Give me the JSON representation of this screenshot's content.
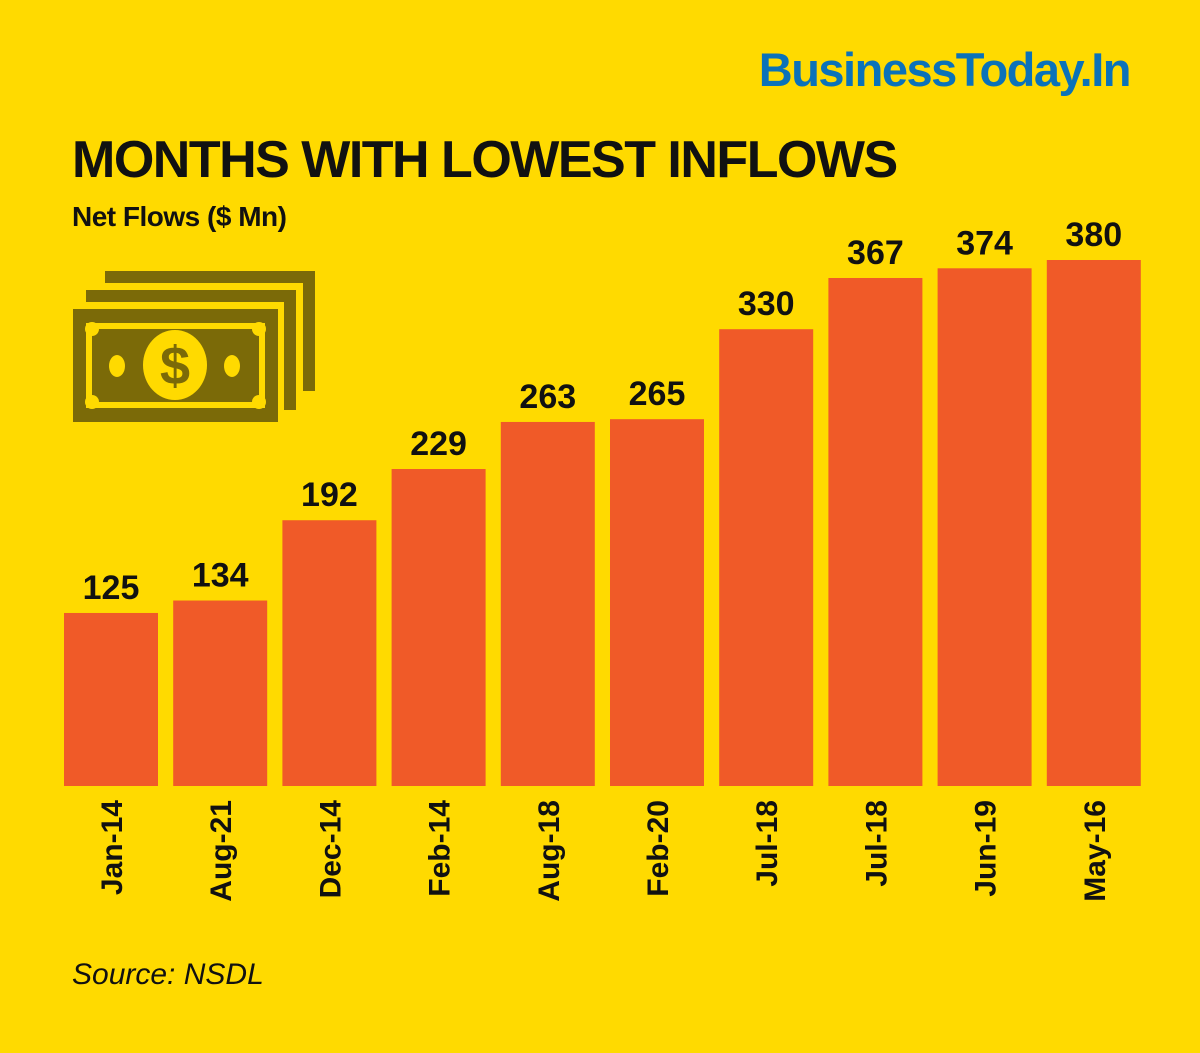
{
  "logo": "BusinessToday.In",
  "source": "Source: NSDL",
  "colors": {
    "background": "#FFDA00",
    "bar": "#F05A28",
    "icon": "#7B6A08",
    "logo": "#0B72B9"
  },
  "icon": "money-bills-icon",
  "chart_data": {
    "type": "bar",
    "title": "MONTHS WITH LOWEST INFLOWS",
    "subtitle": "Net Flows ($ Mn)",
    "categories": [
      "Jan-14",
      "Aug-21",
      "Dec-14",
      "Feb-14",
      "Aug-18",
      "Feb-20",
      "Jul-18",
      "Jul-18",
      "Jun-19",
      "May-16"
    ],
    "values": [
      125,
      134,
      192,
      229,
      263,
      265,
      330,
      367,
      374,
      380
    ],
    "ylim": [
      0,
      380
    ],
    "grid": false,
    "data_labels": true
  }
}
